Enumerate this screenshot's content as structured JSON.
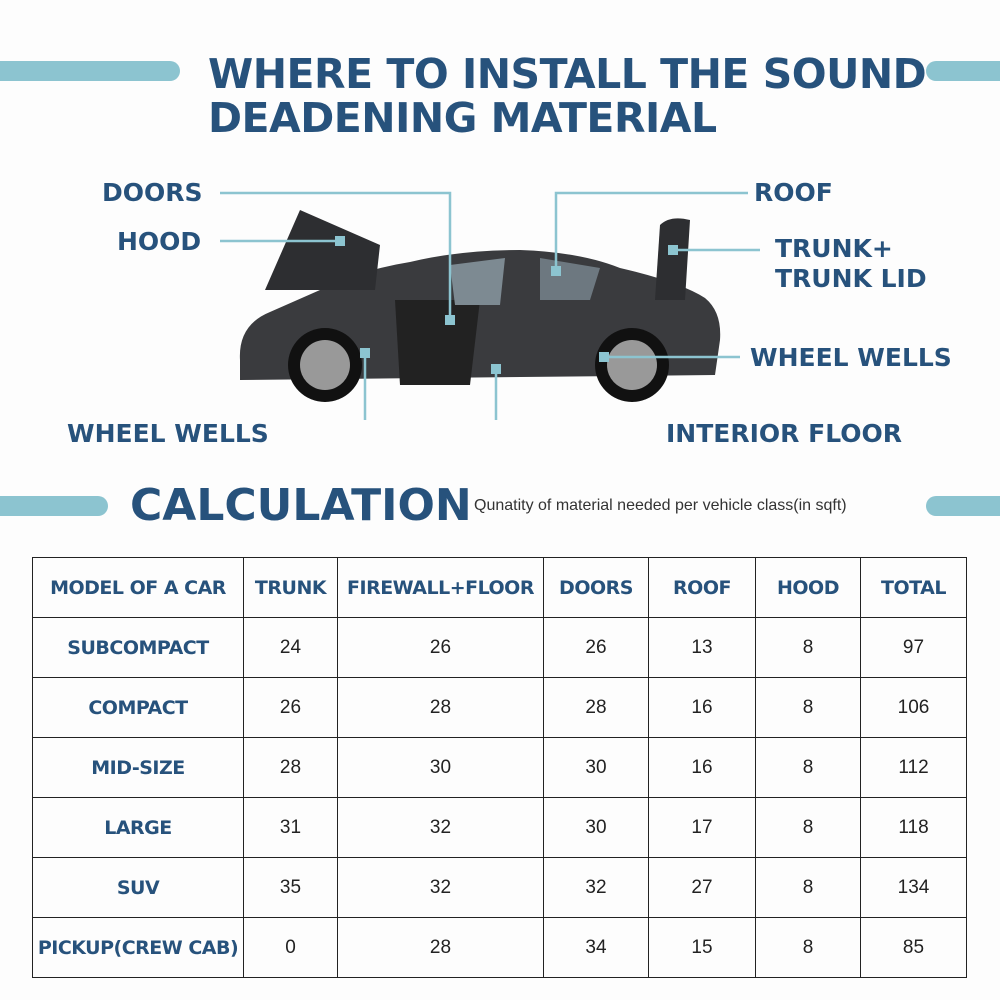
{
  "title": {
    "line1": "WHERE TO INSTALL THE SOUND",
    "line2": "DEADENING MATERIAL"
  },
  "labels": {
    "doors": "DOORS",
    "hood": "HOOD",
    "roof": "ROOF",
    "trunk1": "TRUNK+",
    "trunk2": "TRUNK LID",
    "wheel_wells_right": "WHEEL WELLS",
    "wheel_wells_left": "WHEEL WELLS",
    "interior_floor": "INTERIOR FLOOR"
  },
  "calculation": {
    "heading": "CALCULATION",
    "subtitle": "Qunatity of material needed per vehicle class(in sqft)"
  },
  "colors": {
    "title": "#27527c",
    "accent": "#8cc4d0"
  },
  "table": {
    "headers": [
      "MODEL OF A CAR",
      "TRUNK",
      "FIREWALL+FLOOR",
      "DOORS",
      "ROOF",
      "HOOD",
      "TOTAL"
    ],
    "rows": [
      [
        "SUBCOMPACT",
        "24",
        "26",
        "26",
        "13",
        "8",
        "97"
      ],
      [
        "COMPACT",
        "26",
        "28",
        "28",
        "16",
        "8",
        "106"
      ],
      [
        "MID-SIZE",
        "28",
        "30",
        "30",
        "16",
        "8",
        "112"
      ],
      [
        "LARGE",
        "31",
        "32",
        "30",
        "17",
        "8",
        "118"
      ],
      [
        "SUV",
        "35",
        "32",
        "32",
        "27",
        "8",
        "134"
      ],
      [
        "PICKUP(CREW CAB)",
        "0",
        "28",
        "34",
        "15",
        "8",
        "85"
      ]
    ]
  }
}
